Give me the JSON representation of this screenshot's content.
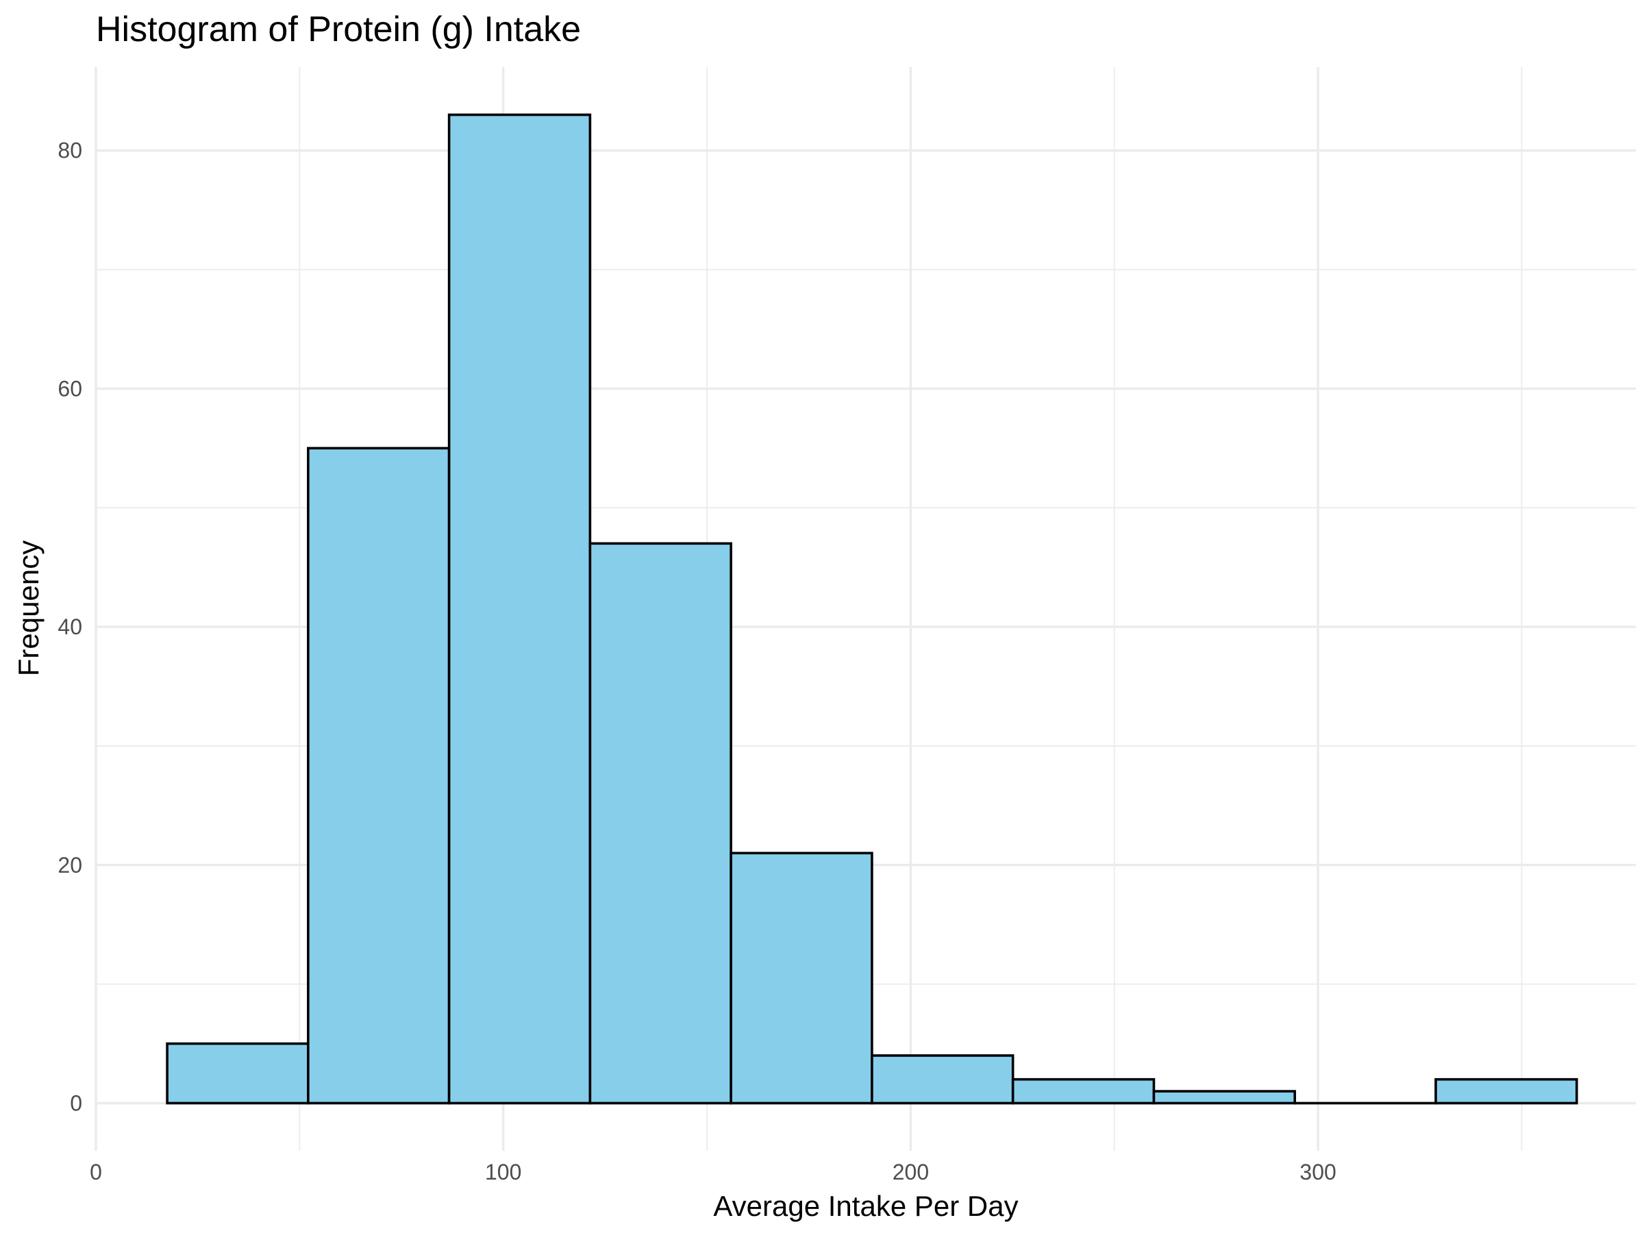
{
  "chart_data": {
    "type": "bar",
    "subtype": "histogram",
    "title": "Histogram of Protein (g) Intake",
    "xlabel": "Average Intake Per Day",
    "ylabel": "Frequency",
    "bins": [
      {
        "x0": 17.5,
        "x1": 52.1,
        "count": 5
      },
      {
        "x0": 52.1,
        "x1": 86.7,
        "count": 55
      },
      {
        "x0": 86.7,
        "x1": 121.3,
        "count": 83
      },
      {
        "x0": 121.3,
        "x1": 155.9,
        "count": 47
      },
      {
        "x0": 155.9,
        "x1": 190.5,
        "count": 21
      },
      {
        "x0": 190.5,
        "x1": 225.1,
        "count": 4
      },
      {
        "x0": 225.1,
        "x1": 259.7,
        "count": 2
      },
      {
        "x0": 259.7,
        "x1": 294.3,
        "count": 1
      },
      {
        "x0": 294.3,
        "x1": 328.9,
        "count": 0
      },
      {
        "x0": 328.9,
        "x1": 363.5,
        "count": 2
      }
    ],
    "xlim": [
      0,
      378
    ],
    "ylim": [
      -4,
      87
    ],
    "x_ticks": [
      0,
      100,
      200,
      300
    ],
    "x_tick_labels": [
      "0",
      "100",
      "200",
      "300"
    ],
    "x_minor_ticks": [
      50,
      150,
      250,
      350
    ],
    "y_ticks": [
      0,
      20,
      40,
      60,
      80
    ],
    "y_tick_labels": [
      "0",
      "20",
      "40",
      "60",
      "80"
    ],
    "y_minor_ticks": [
      10,
      30,
      50,
      70
    ],
    "grid": true,
    "legend": "none",
    "colors": {
      "bar_fill": "#87ceeb",
      "bar_stroke": "#000000",
      "grid": "#ebebeb",
      "tick_label": "#4d4d4d"
    }
  }
}
